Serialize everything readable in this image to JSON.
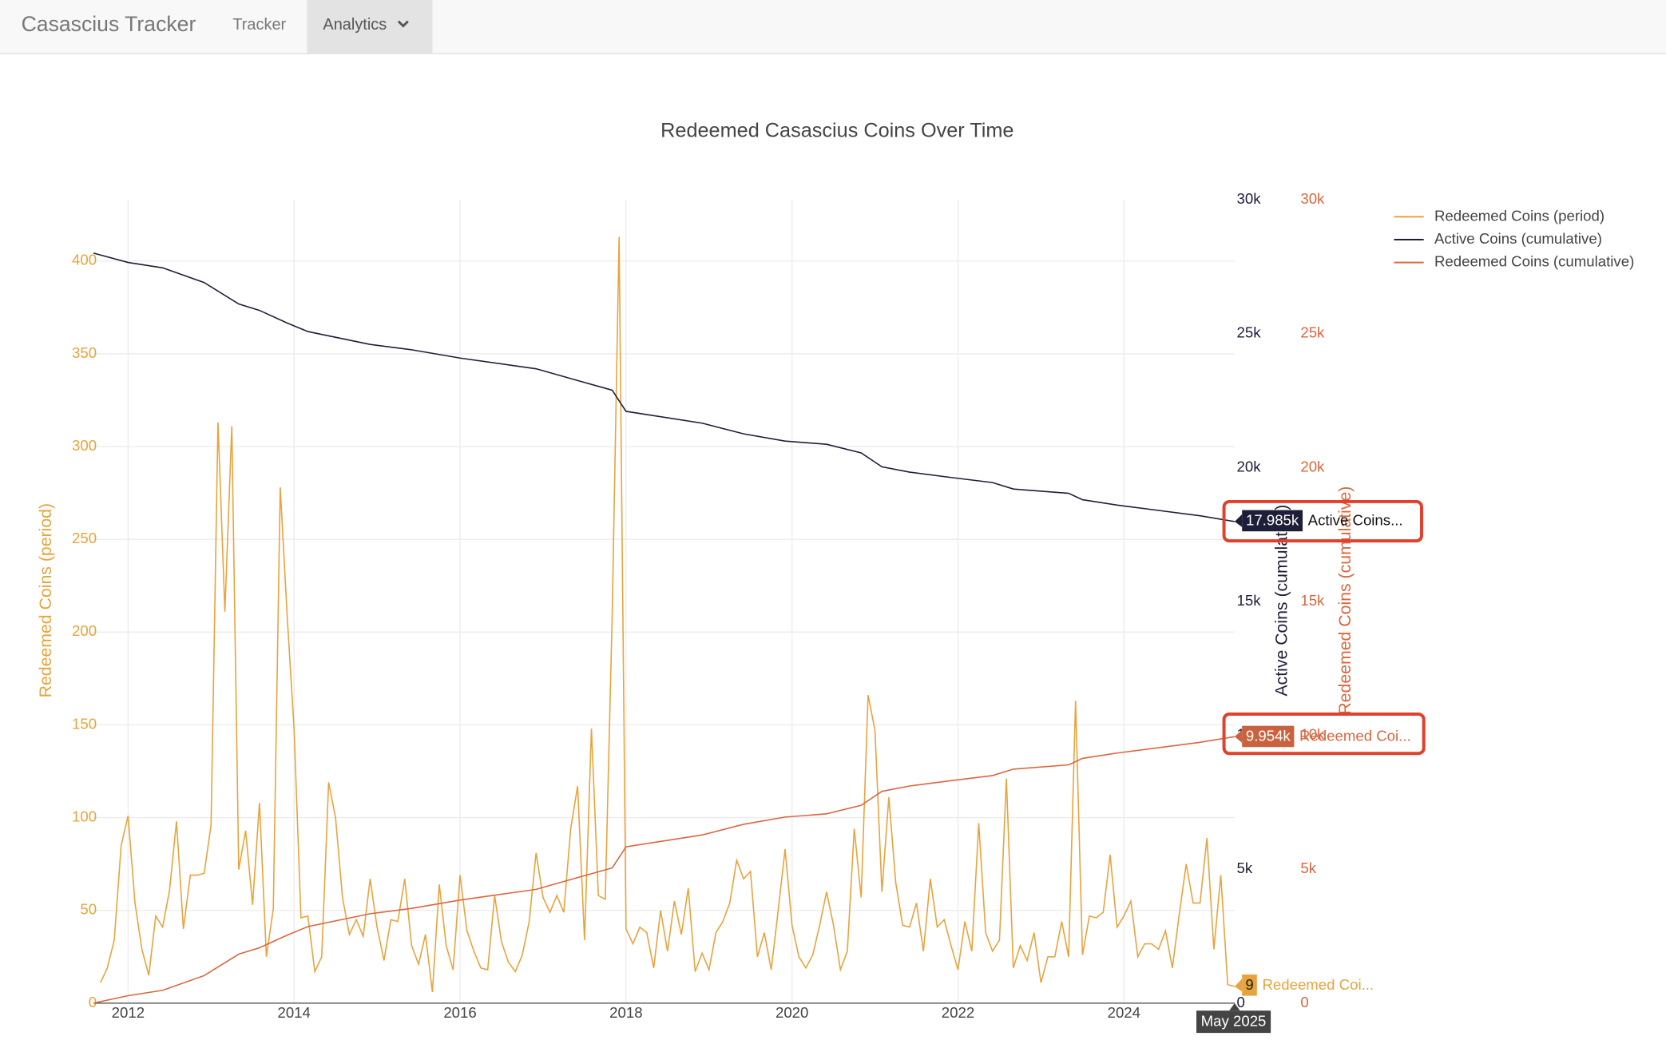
{
  "nav": {
    "brand": "Casascius Tracker",
    "links": [
      "Tracker",
      "Analytics"
    ]
  },
  "chart_data": {
    "type": "line",
    "title": "Redeemed Casascius Coins Over Time",
    "x": [
      "2011-09",
      "2011-10",
      "2011-11",
      "2011-12",
      "2012-01",
      "2012-02",
      "2012-03",
      "2012-04",
      "2012-05",
      "2012-06",
      "2012-07",
      "2012-08",
      "2012-09",
      "2012-10",
      "2012-11",
      "2012-12",
      "2013-01",
      "2013-02",
      "2013-03",
      "2013-04",
      "2013-05",
      "2013-06",
      "2013-07",
      "2013-08",
      "2013-09",
      "2013-10",
      "2013-11",
      "2013-12",
      "2014-01",
      "2014-02",
      "2014-03",
      "2014-04",
      "2014-05",
      "2014-06",
      "2014-07",
      "2014-08",
      "2014-09",
      "2014-10",
      "2014-11",
      "2014-12",
      "2015-01",
      "2015-02",
      "2015-03",
      "2015-04",
      "2015-05",
      "2015-06",
      "2015-07",
      "2015-08",
      "2015-09",
      "2015-10",
      "2015-11",
      "2015-12",
      "2016-01",
      "2016-02",
      "2016-03",
      "2016-04",
      "2016-05",
      "2016-06",
      "2016-07",
      "2016-08",
      "2016-09",
      "2016-10",
      "2016-11",
      "2016-12",
      "2017-01",
      "2017-02",
      "2017-03",
      "2017-04",
      "2017-05",
      "2017-06",
      "2017-07",
      "2017-08",
      "2017-09",
      "2017-10",
      "2017-11",
      "2017-12",
      "2018-01",
      "2018-02",
      "2018-03",
      "2018-04",
      "2018-05",
      "2018-06",
      "2018-07",
      "2018-08",
      "2018-09",
      "2018-10",
      "2018-11",
      "2018-12",
      "2019-01",
      "2019-02",
      "2019-03",
      "2019-04",
      "2019-05",
      "2019-06",
      "2019-07",
      "2019-08",
      "2019-09",
      "2019-10",
      "2019-11",
      "2019-12",
      "2020-01",
      "2020-02",
      "2020-03",
      "2020-04",
      "2020-05",
      "2020-06",
      "2020-07",
      "2020-08",
      "2020-09",
      "2020-10",
      "2020-11",
      "2020-12",
      "2021-01",
      "2021-02",
      "2021-03",
      "2021-04",
      "2021-05",
      "2021-06",
      "2021-07",
      "2021-08",
      "2021-09",
      "2021-10",
      "2021-11",
      "2021-12",
      "2022-01",
      "2022-02",
      "2022-03",
      "2022-04",
      "2022-05",
      "2022-06",
      "2022-07",
      "2022-08",
      "2022-09",
      "2022-10",
      "2022-11",
      "2022-12",
      "2023-01",
      "2023-02",
      "2023-03",
      "2023-04",
      "2023-05",
      "2023-06",
      "2023-07",
      "2023-08",
      "2023-09",
      "2023-10",
      "2023-11",
      "2023-12",
      "2024-01",
      "2024-02",
      "2024-03",
      "2024-04",
      "2024-05",
      "2024-06",
      "2024-07",
      "2024-08",
      "2024-09",
      "2024-10",
      "2024-11",
      "2024-12",
      "2025-01",
      "2025-02",
      "2025-03",
      "2025-04",
      "2025-05"
    ],
    "xlim": [
      "2011-08",
      "2025-05"
    ],
    "xticks": [
      "2012",
      "2014",
      "2016",
      "2018",
      "2020",
      "2022",
      "2024"
    ],
    "ylabel": "Redeemed Coins (period)",
    "ylim": [
      0,
      433
    ],
    "yticks": [
      0,
      50,
      100,
      150,
      200,
      250,
      300,
      350,
      400
    ],
    "y2label": "Active Coins (cumulative)",
    "y2lim": [
      0,
      30000
    ],
    "y2ticks": [
      0,
      {
        "value": 5000,
        "label": "5k"
      },
      {
        "value": 10000,
        "label": "10k"
      },
      {
        "value": 15000,
        "label": "15k"
      },
      {
        "value": 20000,
        "label": "20k"
      },
      {
        "value": 25000,
        "label": "25k"
      },
      {
        "value": 30000,
        "label": "30k"
      }
    ],
    "y3label": "Redeemed Coins (cumulative)",
    "y3lim": [
      0,
      30000
    ],
    "y3ticks": [
      0,
      {
        "value": 5000,
        "label": "5k"
      },
      {
        "value": 10000,
        "label": "10k"
      },
      {
        "value": 15000,
        "label": "15k"
      },
      {
        "value": 20000,
        "label": "20k"
      },
      {
        "value": 25000,
        "label": "25k"
      },
      {
        "value": 30000,
        "label": "30k"
      }
    ],
    "grid": true,
    "legend": "top-right",
    "hover_x": "May 2025",
    "series": [
      {
        "name": "Redeemed Coins (period)",
        "color": "#e8a33d",
        "axis": "y",
        "hover_label": "9",
        "hover_name": "Redeemed Coi...",
        "values": [
          11,
          19,
          34,
          85,
          101,
          54,
          29,
          15,
          47,
          41,
          61,
          98,
          40,
          69,
          69,
          70,
          96,
          313,
          211,
          311,
          72,
          93,
          53,
          108,
          25,
          51,
          278,
          209,
          148,
          46,
          47,
          17,
          25,
          119,
          100,
          57,
          37,
          45,
          36,
          67,
          41,
          23,
          45,
          44,
          67,
          31,
          21,
          37,
          6,
          64,
          31,
          18,
          69,
          39,
          28,
          19,
          18,
          58,
          33,
          22,
          17,
          26,
          44,
          81,
          57,
          49,
          58,
          49,
          94,
          117,
          34,
          148,
          58,
          56,
          209,
          413,
          40,
          32,
          41,
          38,
          19,
          50,
          28,
          55,
          37,
          62,
          17,
          27,
          18,
          38,
          44,
          54,
          77,
          67,
          71,
          25,
          38,
          18,
          50,
          83,
          42,
          25,
          19,
          26,
          42,
          60,
          42,
          18,
          28,
          94,
          57,
          166,
          147,
          60,
          111,
          65,
          42,
          41,
          54,
          28,
          67,
          41,
          45,
          31,
          18,
          44,
          28,
          97,
          38,
          28,
          34,
          121,
          19,
          31,
          23,
          38,
          11,
          25,
          25,
          44,
          25,
          163,
          26,
          47,
          46,
          49,
          80,
          41,
          47,
          55,
          25,
          32,
          32,
          29,
          39,
          19,
          48,
          75,
          54,
          54,
          89,
          29,
          69,
          10,
          9
        ]
      },
      {
        "name": "Active Coins (cumulative)",
        "color": "#1e1e38",
        "axis": "y2",
        "hover_label": "17.985k",
        "hover_name": "Active Coins...",
        "x": [
          "2011-08",
          "2012-01",
          "2012-06",
          "2012-12",
          "2013-05",
          "2013-08",
          "2013-12",
          "2014-03",
          "2014-12",
          "2015-06",
          "2016-01",
          "2016-12",
          "2017-06",
          "2017-11",
          "2018-01",
          "2018-12",
          "2019-06",
          "2019-12",
          "2020-06",
          "2020-11",
          "2021-02",
          "2021-06",
          "2021-12",
          "2022-06",
          "2022-09",
          "2023-05",
          "2023-07",
          "2023-12",
          "2024-06",
          "2024-12",
          "2025-05"
        ],
        "values": [
          28010,
          27660,
          27460,
          26910,
          26110,
          25870,
          25400,
          25080,
          24600,
          24400,
          24090,
          23690,
          23250,
          22890,
          22100,
          21660,
          21260,
          20990,
          20870,
          20550,
          20030,
          19830,
          19630,
          19440,
          19200,
          19040,
          18800,
          18600,
          18400,
          18200,
          17985
        ]
      },
      {
        "name": "Redeemed Coins (cumulative)",
        "color": "#d9673e",
        "axis": "y3",
        "hover_label": "9.954k",
        "hover_name": "Redeemed Coi...",
        "x": [
          "2011-08",
          "2012-01",
          "2012-06",
          "2012-12",
          "2013-05",
          "2013-08",
          "2013-12",
          "2014-03",
          "2014-12",
          "2015-06",
          "2016-01",
          "2016-12",
          "2017-06",
          "2017-11",
          "2018-01",
          "2018-12",
          "2019-06",
          "2019-12",
          "2020-06",
          "2020-11",
          "2021-02",
          "2021-06",
          "2021-12",
          "2022-06",
          "2022-09",
          "2023-05",
          "2023-07",
          "2023-12",
          "2024-06",
          "2024-12",
          "2025-05"
        ],
        "values": [
          0,
          280,
          480,
          1030,
          1830,
          2070,
          2540,
          2860,
          3340,
          3540,
          3850,
          4250,
          4690,
          5050,
          5840,
          6280,
          6680,
          6950,
          7070,
          7390,
          7910,
          8110,
          8310,
          8500,
          8740,
          8900,
          9140,
          9340,
          9540,
          9740,
          9954
        ]
      }
    ]
  }
}
